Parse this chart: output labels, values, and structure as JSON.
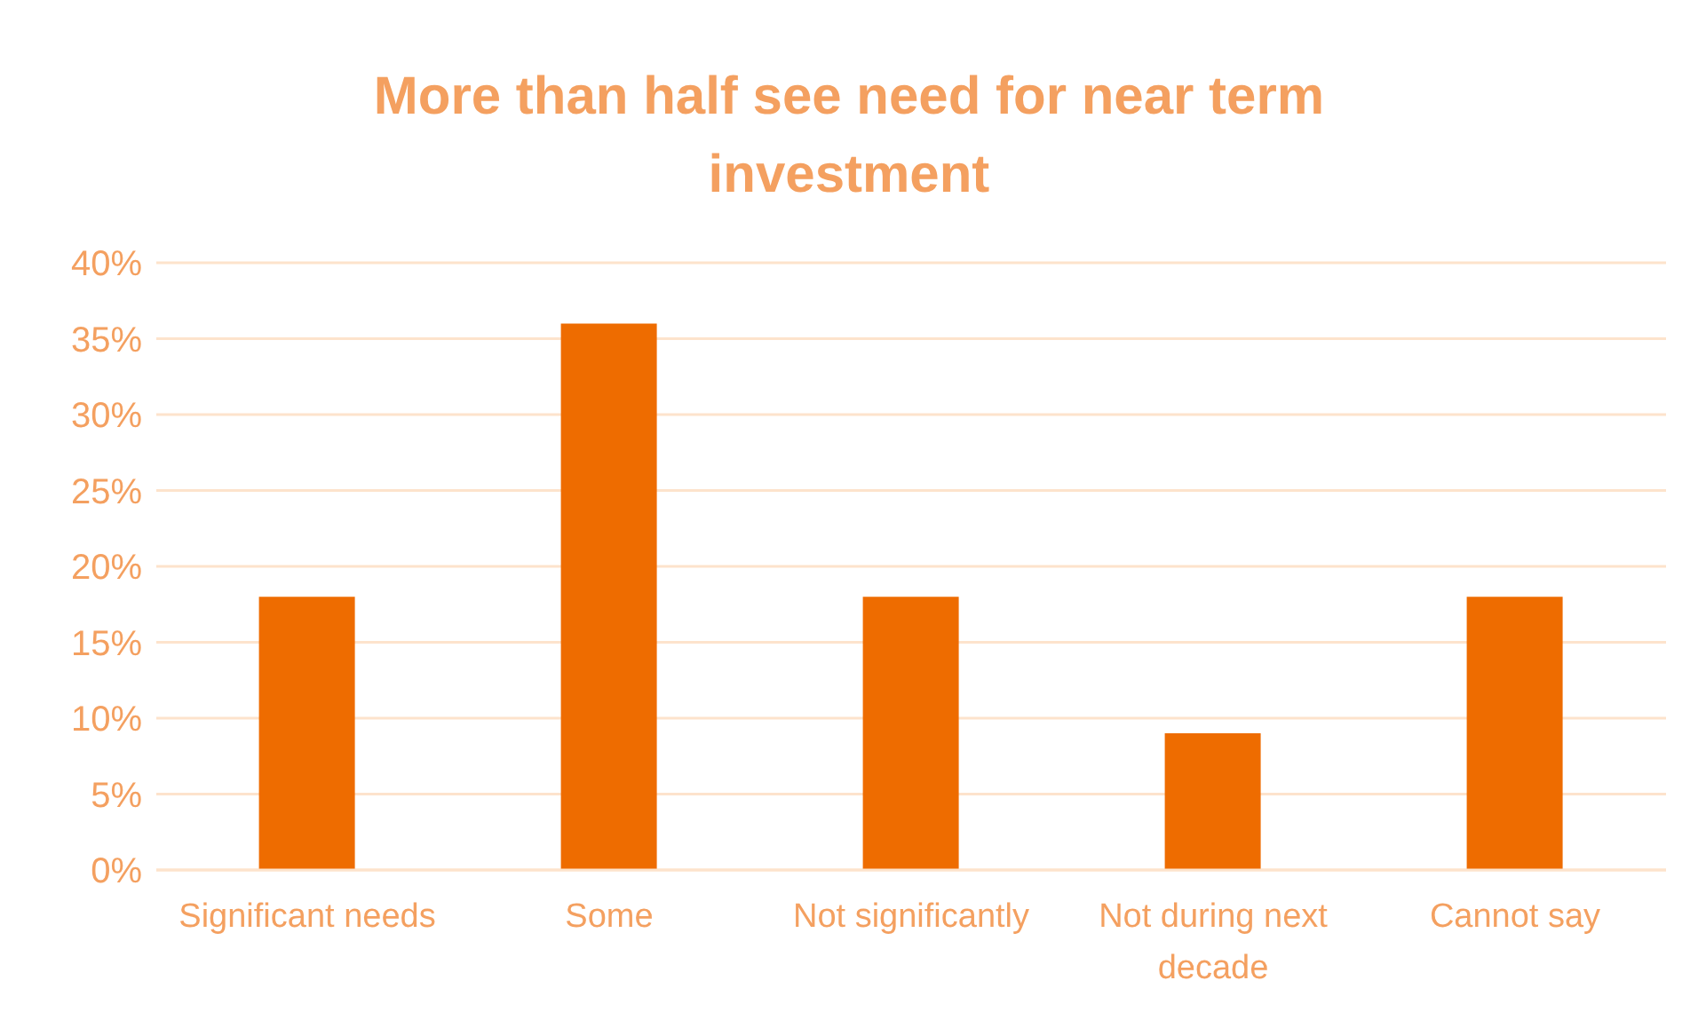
{
  "chart_data": {
    "type": "bar",
    "title": "More than half see need for near term investment",
    "categories": [
      "Significant needs",
      "Some",
      "Not significantly",
      "Not during next decade",
      "Cannot say"
    ],
    "values": [
      18,
      36,
      18,
      9,
      18
    ],
    "color": "#ee6c00",
    "ylim": [
      0,
      40
    ],
    "yticks": [
      {
        "value": 0,
        "label": "0%"
      },
      {
        "value": 5,
        "label": "5%"
      },
      {
        "value": 10,
        "label": "10%"
      },
      {
        "value": 15,
        "label": "15%"
      },
      {
        "value": 20,
        "label": "20%"
      },
      {
        "value": 25,
        "label": "25%"
      },
      {
        "value": 30,
        "label": "30%"
      },
      {
        "value": 35,
        "label": "35%"
      },
      {
        "value": 40,
        "label": "40%"
      }
    ],
    "grid": "y"
  }
}
